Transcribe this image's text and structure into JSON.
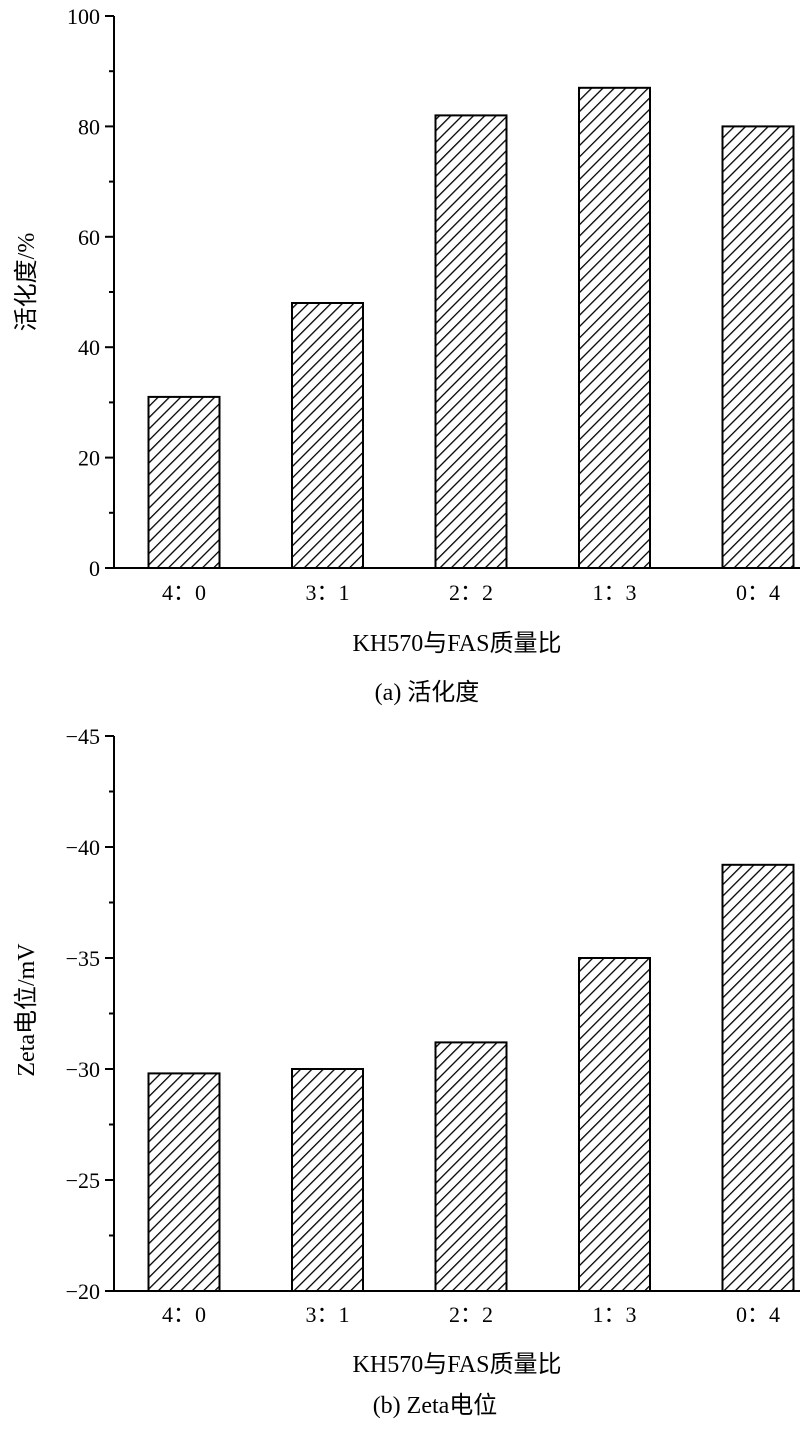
{
  "chart_data": [
    {
      "type": "bar",
      "caption": "(a) 活化度",
      "categories": [
        "4：0",
        "3：1",
        "2：2",
        "1：3",
        "0：4"
      ],
      "values": [
        31,
        48,
        82,
        87,
        80
      ],
      "xlabel": "KH570与FAS质量比",
      "ylabel": "活化度/%",
      "ylim": [
        0,
        100
      ],
      "yticks": [
        0,
        20,
        40,
        60,
        80,
        100
      ],
      "ytick_labels": [
        "0",
        "20",
        "40",
        "60",
        "80",
        "100"
      ],
      "y_inverted": false,
      "grid": false,
      "bar_fill": "diagonal hatch",
      "bar_color": "#000000"
    },
    {
      "type": "bar",
      "caption": "(b) Zeta电位",
      "categories": [
        "4：0",
        "3：1",
        "2：2",
        "1：3",
        "0：4"
      ],
      "values": [
        -29.8,
        -30.0,
        -31.2,
        -35.0,
        -39.2
      ],
      "xlabel": "KH570与FAS质量比",
      "ylabel": "Zeta电位/mV",
      "ylim": [
        -20,
        -45
      ],
      "yticks": [
        -20,
        -25,
        -30,
        -35,
        -40,
        -45
      ],
      "ytick_labels": [
        "−20",
        "−25",
        "−30",
        "−35",
        "−40",
        "−45"
      ],
      "y_inverted": true,
      "grid": false,
      "bar_fill": "diagonal hatch",
      "bar_color": "#000000"
    }
  ]
}
